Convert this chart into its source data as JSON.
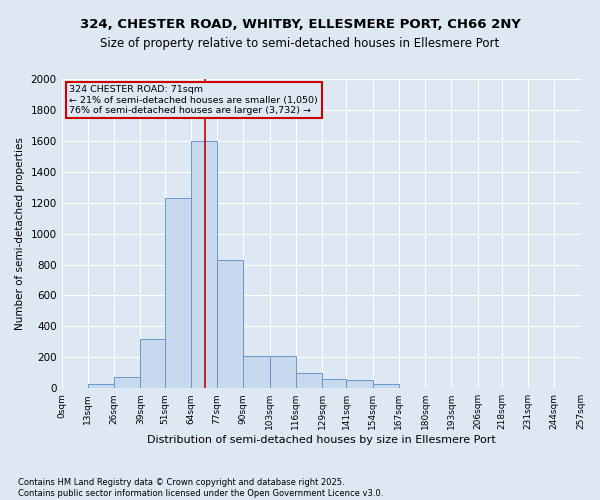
{
  "title_line1": "324, CHESTER ROAD, WHITBY, ELLESMERE PORT, CH66 2NY",
  "title_line2": "Size of property relative to semi-detached houses in Ellesmere Port",
  "xlabel": "Distribution of semi-detached houses by size in Ellesmere Port",
  "ylabel": "Number of semi-detached properties",
  "footnote": "Contains HM Land Registry data © Crown copyright and database right 2025.\nContains public sector information licensed under the Open Government Licence v3.0.",
  "annotation_title": "324 CHESTER ROAD: 71sqm",
  "annotation_line2": "← 21% of semi-detached houses are smaller (1,050)",
  "annotation_line3": "76% of semi-detached houses are larger (3,732) →",
  "property_size": 71,
  "bin_edges": [
    0,
    13,
    26,
    39,
    51,
    64,
    77,
    90,
    103,
    116,
    129,
    141,
    154,
    167,
    180,
    193,
    206,
    218,
    231,
    244,
    257
  ],
  "bin_labels": [
    "0sqm",
    "13sqm",
    "26sqm",
    "39sqm",
    "51sqm",
    "64sqm",
    "77sqm",
    "90sqm",
    "103sqm",
    "116sqm",
    "129sqm",
    "141sqm",
    "154sqm",
    "167sqm",
    "180sqm",
    "193sqm",
    "206sqm",
    "218sqm",
    "231sqm",
    "244sqm",
    "257sqm"
  ],
  "bar_values": [
    0,
    25,
    75,
    320,
    1230,
    1600,
    830,
    210,
    210,
    100,
    60,
    55,
    25,
    0,
    0,
    0,
    0,
    0,
    0,
    0
  ],
  "bar_color": "#c8d8ed",
  "bar_edge_color": "#6699cc",
  "vline_color": "#cc0000",
  "vline_x": 71,
  "annotation_box_color": "#cc0000",
  "background_color": "#dde8f3",
  "ylim": [
    0,
    2000
  ],
  "yticks": [
    0,
    200,
    400,
    600,
    800,
    1000,
    1200,
    1400,
    1600,
    1800,
    2000
  ]
}
